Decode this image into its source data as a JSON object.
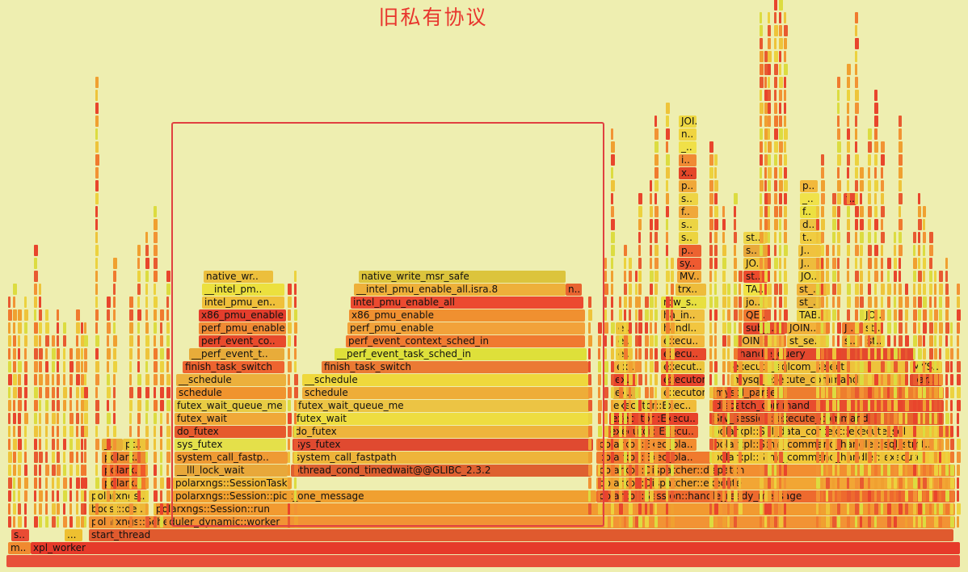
{
  "page": {
    "title": "旧私有协议"
  },
  "colors": {
    "background": "#eeeeb0",
    "highlight_border": "#e04040",
    "title": "#e8362e"
  },
  "flamegraph": {
    "frames": [
      {
        "label": "",
        "c": "#e8503a"
      },
      {
        "label": "m..",
        "c": "#f08a30"
      },
      {
        "label": "xpl_worker",
        "c": "#e63a2a"
      },
      {
        "label": "s..",
        "c": "#e94b34"
      },
      {
        "label": "...",
        "c": "#eec030"
      },
      {
        "label": "start_thread",
        "c": "#e05a2e"
      },
      {
        "label": "polarxngs::Scheduler_dynamic::worker",
        "c": "#f29334"
      },
      {
        "label": "boost::de..",
        "c": "#eeb838"
      },
      {
        "label": "polarxngs::Session::run",
        "c": "#f29a30"
      },
      {
        "label": "polarxngs..",
        "c": "#ecc93c"
      },
      {
        "label": "polarxngs::Session::pick_one_message",
        "c": "#f0a030"
      },
      {
        "label": "polarxpl::Session::handle_ready_message",
        "c": "#ee6a2e"
      },
      {
        "label": "polarx..",
        "c": "#f2782c"
      },
      {
        "label": "polarxngs::SessionTaskQueue::pop",
        "c": "#f0b838"
      },
      {
        "label": "polarxpl::Dispatcher::execute",
        "c": "#f2a634"
      },
      {
        "label": "polarx..",
        "c": "#f05a2a"
      },
      {
        "label": "__lll_lock_wait",
        "c": "#e8a83a"
      },
      {
        "label": "pthread_cond_timedwait@@GLIBC_2.3.2",
        "c": "#de6030"
      },
      {
        "label": "polarxpl::Dispatcher::dispatch",
        "c": "#f28e30"
      },
      {
        "label": "polarx..",
        "c": "#ee8c30"
      },
      {
        "label": "system_call_fastp..",
        "c": "#ef9a34"
      },
      {
        "label": "system_call_fastpath",
        "c": "#eeb43a"
      },
      {
        "label": "polarxpl::Exec_pla..",
        "c": "#f07a2e"
      },
      {
        "label": "polarxpl::Stmt_command_handler::execute",
        "c": "#f2c838"
      },
      {
        "label": "_..",
        "c": "#e8b036"
      },
      {
        "label": "pt..",
        "c": "#ecc43a"
      },
      {
        "label": "sys_futex",
        "c": "#e4e04a"
      },
      {
        "label": "sys_futex",
        "c": "#e04a30"
      },
      {
        "label": "polarxpl::Exec_pla..",
        "c": "#f28c30"
      },
      {
        "label": "polarxpl::Stmt_command_handler::sql_stmt..",
        "c": "#f0a632"
      },
      {
        "label": "do_futex",
        "c": "#e65a2c"
      },
      {
        "label": "do_futex",
        "c": "#eeb43c"
      },
      {
        "label": "executor::Execu..",
        "c": "#ec5e2c"
      },
      {
        "label": "polarxpl::Sql_data_context::execute_sql",
        "c": "#f0c038"
      },
      {
        "label": "futex_wait",
        "c": "#f0a838"
      },
      {
        "label": "futex_wait",
        "c": "#eedd40"
      },
      {
        "label": "executor::Execu..",
        "c": "#e8422a"
      },
      {
        "label": "Srv_session::execute_command",
        "c": "#e6662c"
      },
      {
        "label": "futex_wait_queue_me",
        "c": "#e8cc44"
      },
      {
        "label": "futex_wait_queue_me",
        "c": "#ecc444"
      },
      {
        "label": "executor::Exec..",
        "c": "#f0bc3a"
      },
      {
        "label": "dispatch_command",
        "c": "#e84c2e"
      },
      {
        "label": "schedule",
        "c": "#f0942e"
      },
      {
        "label": "schedule",
        "c": "#eead38"
      },
      {
        "label": "ex..",
        "c": "#e8b03a"
      },
      {
        "label": "executor::Execu..",
        "c": "#f0c03c"
      },
      {
        "label": "mysql_parse",
        "c": "#ee7e2e"
      },
      {
        "label": "__schedule",
        "c": "#ecb03c"
      },
      {
        "label": "__schedule",
        "c": "#efd83c"
      },
      {
        "label": "ex..",
        "c": "#e8452c"
      },
      {
        "label": "executor..",
        "c": "#e8452c"
      },
      {
        "label": "mysql_execute_command",
        "c": "#eeb83a"
      },
      {
        "label": "par..",
        "c": "#e04a2c"
      },
      {
        "label": "finish_task_switch",
        "c": "#ee6430"
      },
      {
        "label": "finish_task_switch",
        "c": "#eb7a34"
      },
      {
        "label": "ex..",
        "c": "#f0b03c"
      },
      {
        "label": "execut..",
        "c": "#ecc43c"
      },
      {
        "label": "execute_sqlcom_select",
        "c": "#eec23c"
      },
      {
        "label": "MYS..",
        "c": "#eec83c"
      },
      {
        "label": "__perf_event_t..",
        "c": "#e8ac3a"
      },
      {
        "label": "__perf_event_task_sched_in",
        "c": "#dee03a"
      },
      {
        "label": "e..",
        "c": "#eece3a"
      },
      {
        "label": "execu..",
        "c": "#e84a2c"
      },
      {
        "label": "handle_query",
        "c": "#e4482e"
      },
      {
        "label": "perf_event_co..",
        "c": "#e84a2c"
      },
      {
        "label": "perf_event_context_sched_in",
        "c": "#f07a30"
      },
      {
        "label": "e..",
        "c": "#f0c440"
      },
      {
        "label": "execu..",
        "c": "#f2b83c"
      },
      {
        "label": "JOIN::..",
        "c": "#f0b240"
      },
      {
        "label": "st_se..",
        "c": "#f0c43e"
      },
      {
        "label": "s..",
        "c": "#f29a34"
      },
      {
        "label": "st..",
        "c": "#f2a638"
      },
      {
        "label": "perf_pmu_enable",
        "c": "#f08a34"
      },
      {
        "label": "perf_pmu_enable",
        "c": "#f2a23a"
      },
      {
        "label": "e..",
        "c": "#eec438"
      },
      {
        "label": "handl..",
        "c": "#f2c640"
      },
      {
        "label": "sub_..",
        "c": "#e84a2e"
      },
      {
        "label": "JOIN..",
        "c": "#f2b23a"
      },
      {
        "label": "J..",
        "c": "#f07a30"
      },
      {
        "label": "st..",
        "c": "#f0c43c"
      },
      {
        "label": "x86_pmu_enable",
        "c": "#e43e2c"
      },
      {
        "label": "x86_pmu_enable",
        "c": "#f09030"
      },
      {
        "label": "ha_in..",
        "c": "#f0c040"
      },
      {
        "label": "QE..",
        "c": "#f2782e"
      },
      {
        "label": "TAB..",
        "c": "#ecd040"
      },
      {
        "label": "JO..",
        "c": "#ece44a"
      },
      {
        "label": "intel_pmu_en..",
        "c": "#f0c03a"
      },
      {
        "label": "intel_pmu_enable_all",
        "c": "#ec4a30"
      },
      {
        "label": "row_s..",
        "c": "#e8e040"
      },
      {
        "label": "jo..",
        "c": "#eebc3c"
      },
      {
        "label": "st_..",
        "c": "#e8b43a"
      },
      {
        "label": "__intel_pm..",
        "c": "#ece03e"
      },
      {
        "label": "__intel_pmu_enable_all.isra.8",
        "c": "#eeb03a"
      },
      {
        "label": "n..",
        "c": "#e86430"
      },
      {
        "label": "trx..",
        "c": "#eebc3a"
      },
      {
        "label": "TA..",
        "c": "#f0e244"
      },
      {
        "label": "st_..",
        "c": "#f0b43a"
      },
      {
        "label": "native_wr..",
        "c": "#ecbf3c"
      },
      {
        "label": "native_write_msr_safe",
        "c": "#dcc43c"
      },
      {
        "label": "MV..",
        "c": "#f0a636"
      },
      {
        "label": "st..",
        "c": "#ec4a2c"
      },
      {
        "label": "JO..",
        "c": "#eed03e"
      },
      {
        "label": "sy..",
        "c": "#ee5a30"
      },
      {
        "label": "JO..",
        "c": "#eec43c"
      },
      {
        "label": "J..",
        "c": "#eebc3c"
      },
      {
        "label": "p..",
        "c": "#ec6230"
      },
      {
        "label": "s..",
        "c": "#e8a83a"
      },
      {
        "label": "J..",
        "c": "#f0c23e"
      },
      {
        "label": "s..",
        "c": "#ecd440"
      },
      {
        "label": "st..",
        "c": "#eed64a"
      },
      {
        "label": "t..",
        "c": "#f0cc40"
      },
      {
        "label": "s..",
        "c": "#ecd444"
      },
      {
        "label": "d..",
        "c": "#ecc442"
      },
      {
        "label": "f..",
        "c": "#f0a83a"
      },
      {
        "label": "f..",
        "c": "#ece040"
      },
      {
        "label": "s..",
        "c": "#eed444"
      },
      {
        "label": "_..",
        "c": "#f0e24a"
      },
      {
        "label": "f..",
        "c": "#e84830"
      },
      {
        "label": "p..",
        "c": "#f0a838"
      },
      {
        "label": "p..",
        "c": "#f2b83c"
      },
      {
        "label": "x..",
        "c": "#e44628"
      },
      {
        "label": "i..",
        "c": "#f08a34"
      },
      {
        "label": "_..",
        "c": "#f0e048"
      },
      {
        "label": "n..",
        "c": "#f0d440"
      },
      {
        "label": "JOI..",
        "c": "#eed842"
      }
    ]
  }
}
